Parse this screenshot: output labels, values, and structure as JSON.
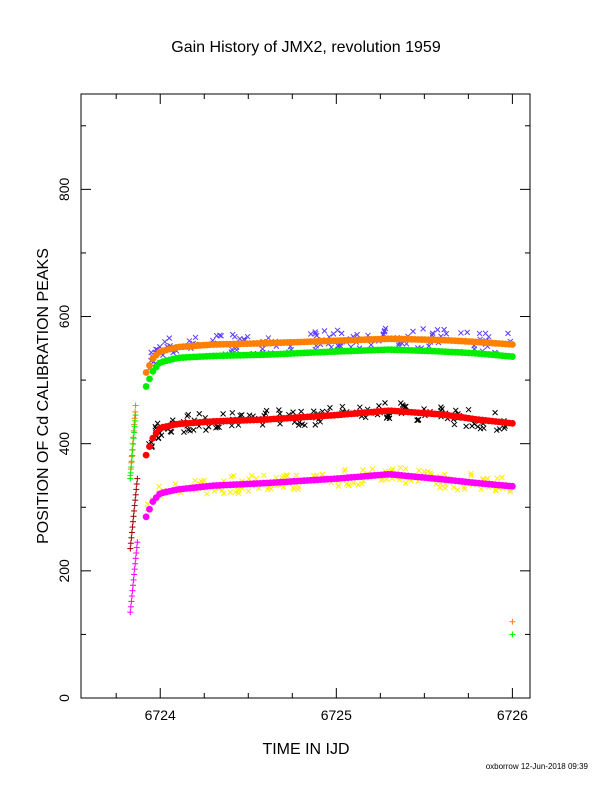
{
  "chart_data": {
    "type": "scatter",
    "title": "Gain History of JMX2, revolution 1959",
    "xlabel": "TIME IN IJD",
    "ylabel": "POSITION OF Cd CALIBRATION PEAKS",
    "footer": "oxborrow 12-Jun-2018 09:39",
    "xlim": [
      6723.55,
      6726.1
    ],
    "ylim": [
      0,
      950
    ],
    "xticks": [
      6724,
      6725,
      6726
    ],
    "yticks": [
      0,
      200,
      400,
      600,
      800
    ],
    "grid": false,
    "colors": {
      "orange": "#ff8000",
      "green": "#00ee00",
      "blue_purple": "#5a3cff",
      "black": "#000000",
      "red": "#ff0000",
      "yellow": "#ffee00",
      "magenta": "#ff00ff",
      "dark_red": "#a00000"
    },
    "fit_curves": [
      {
        "color": "orange",
        "x": [
          6723.92,
          6723.96,
          6724.0,
          6724.1,
          6724.3,
          6724.6,
          6725.0,
          6725.3,
          6725.6,
          6725.8,
          6726.0
        ],
        "y": [
          512,
          535,
          545,
          552,
          556,
          558,
          562,
          565,
          563,
          560,
          556
        ]
      },
      {
        "color": "green",
        "x": [
          6723.92,
          6723.96,
          6724.0,
          6724.1,
          6724.3,
          6724.6,
          6725.0,
          6725.3,
          6725.6,
          6725.8,
          6726.0
        ],
        "y": [
          490,
          515,
          528,
          535,
          538,
          540,
          545,
          548,
          545,
          542,
          537
        ]
      },
      {
        "color": "red",
        "x": [
          6723.92,
          6723.96,
          6724.0,
          6724.1,
          6724.3,
          6724.6,
          6725.0,
          6725.3,
          6725.6,
          6725.8,
          6726.0
        ],
        "y": [
          382,
          410,
          425,
          431,
          435,
          438,
          445,
          452,
          446,
          438,
          432
        ]
      },
      {
        "color": "magenta",
        "x": [
          6723.92,
          6723.96,
          6724.0,
          6724.1,
          6724.3,
          6724.6,
          6725.0,
          6725.3,
          6725.6,
          6725.8,
          6726.0
        ],
        "y": [
          285,
          310,
          322,
          328,
          334,
          338,
          345,
          352,
          344,
          338,
          333
        ]
      }
    ],
    "scatter_bands": [
      {
        "color": "blue_purple",
        "center": "orange",
        "spread": 18,
        "n": 150,
        "mark": "x"
      },
      {
        "color": "black",
        "center": "red",
        "spread": 14,
        "n": 150,
        "mark": "x"
      },
      {
        "color": "yellow",
        "center": "magenta",
        "spread": 14,
        "n": 150,
        "mark": "x"
      }
    ],
    "ramp_points": [
      {
        "color": "orange",
        "x": [
          6723.83,
          6723.86
        ],
        "y": [
          350,
          460
        ],
        "n": 12,
        "mark": "+"
      },
      {
        "color": "green",
        "x": [
          6723.83,
          6723.86
        ],
        "y": [
          345,
          445
        ],
        "n": 12,
        "mark": "+"
      },
      {
        "color": "dark_red",
        "x": [
          6723.83,
          6723.87
        ],
        "y": [
          235,
          345
        ],
        "n": 14,
        "mark": "+"
      },
      {
        "color": "magenta",
        "x": [
          6723.83,
          6723.87
        ],
        "y": [
          135,
          245
        ],
        "n": 14,
        "mark": "+"
      }
    ],
    "outliers": [
      {
        "color": "orange",
        "x": 6726.0,
        "y": 120,
        "mark": "+"
      },
      {
        "color": "green",
        "x": 6726.0,
        "y": 100,
        "mark": "+"
      }
    ]
  }
}
